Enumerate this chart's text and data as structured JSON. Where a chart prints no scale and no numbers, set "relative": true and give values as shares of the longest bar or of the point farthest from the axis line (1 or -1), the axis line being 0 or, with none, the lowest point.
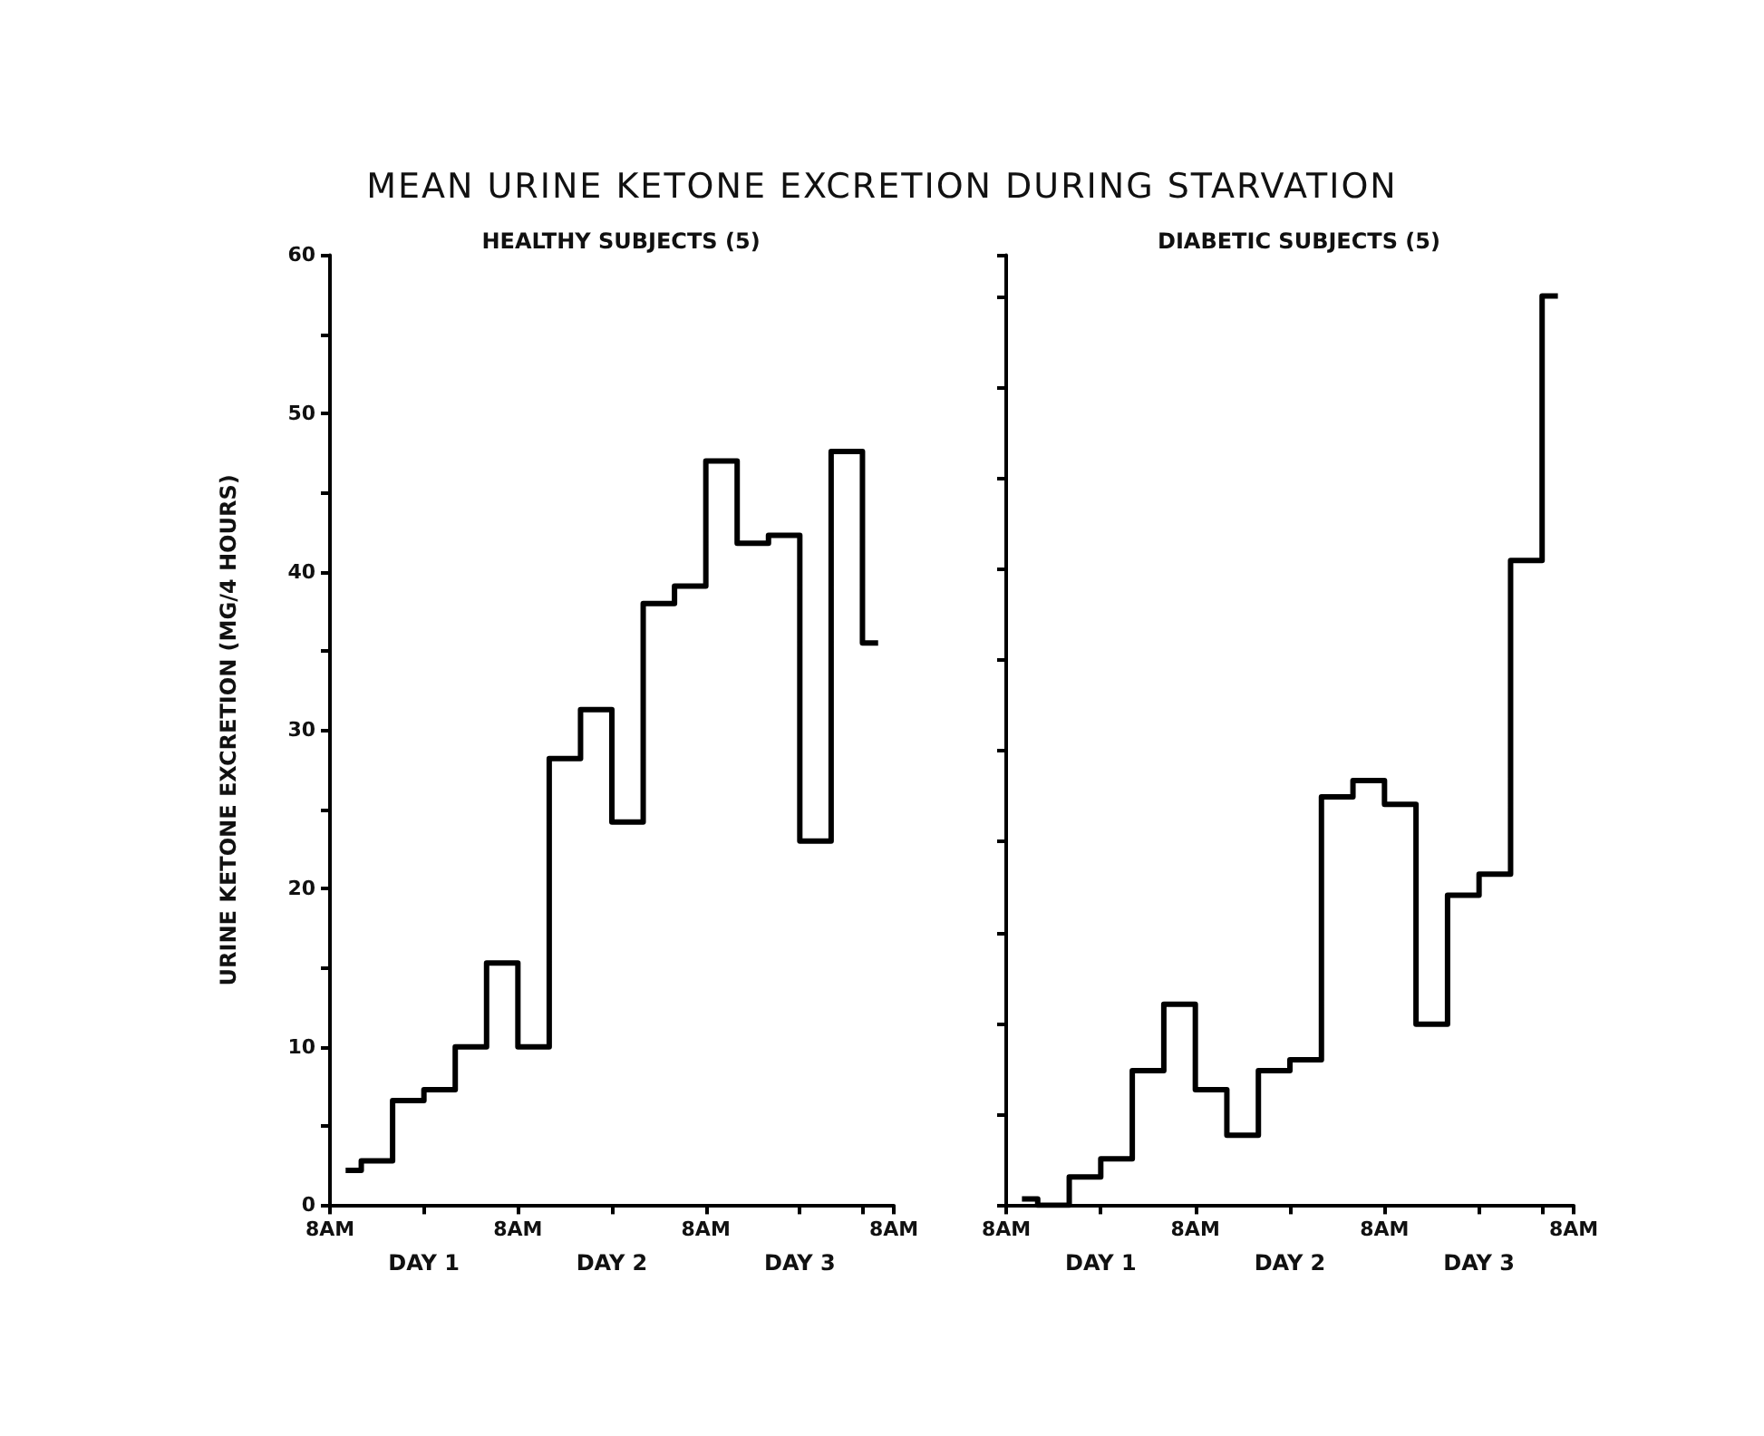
{
  "chart_data": [
    {
      "type": "step",
      "title": "MEAN URINE KETONE EXCRETION DURING STARVATION",
      "subtitle": "HEALTHY SUBJECTS (5)",
      "ylabel": "URINE KETONE EXCRETION (MG/4 HOURS)",
      "color": "#000000",
      "grid": false,
      "annotations": [
        "8AM",
        "DAY 1",
        "8AM",
        "DAY 2",
        "8AM",
        "DAY 3",
        "8AM"
      ],
      "categories": [
        null,
        null,
        null,
        null,
        null,
        null,
        null,
        null,
        null,
        null,
        null,
        null,
        null,
        null,
        null,
        null,
        null,
        null
      ],
      "values": [
        2.2,
        2.8,
        6.6,
        7.3,
        10,
        15.3,
        10,
        28.2,
        31.3,
        24.2,
        38,
        39.1,
        47,
        41.8,
        42.3,
        23,
        47.6,
        35.5
      ],
      "ylim": [
        0,
        60
      ],
      "yticks": [
        0,
        {
          "value": 5,
          "label": null
        },
        10,
        {
          "value": 15,
          "label": null
        },
        20,
        {
          "value": 25,
          "label": null
        },
        30,
        {
          "value": 35,
          "label": null
        },
        40,
        {
          "value": 45,
          "label": null
        },
        50,
        {
          "value": 55,
          "label": null
        },
        60
      ]
    },
    {
      "type": "step",
      "subtitle": "DIABETIC SUBJECTS (5)",
      "color": "#000000",
      "grid": false,
      "tick_labels": "x",
      "relative": true,
      "annotations": [
        "8AM",
        "DAY 1",
        "8AM",
        "DAY 2",
        "8AM",
        "DAY 3",
        "8AM"
      ],
      "categories": [
        null,
        null,
        null,
        null,
        null,
        null,
        null,
        null,
        null,
        null,
        null,
        null,
        null,
        null,
        null,
        null,
        null,
        null
      ],
      "values": [
        0.007,
        0,
        0.031,
        0.051,
        0.148,
        0.221,
        0.127,
        0.077,
        0.148,
        0.16,
        0.449,
        0.467,
        0.441,
        0.199,
        0.341,
        0.364,
        0.709,
        1
      ]
    }
  ]
}
